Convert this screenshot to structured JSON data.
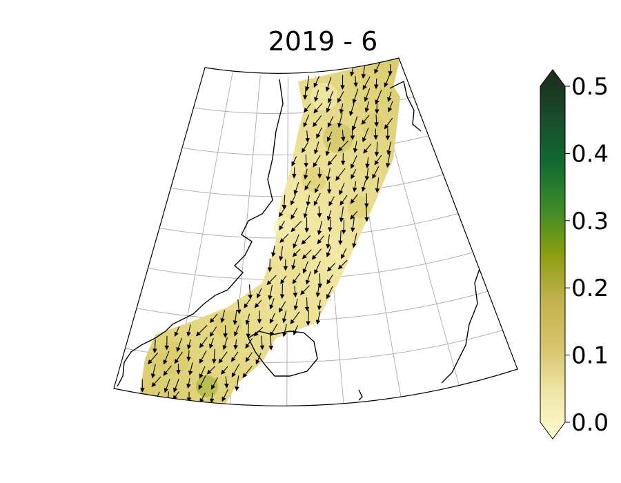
{
  "title": "2019 - 6",
  "colorbar": {
    "ticks": [
      {
        "value": 0.0,
        "label": "0.0"
      },
      {
        "value": 0.1,
        "label": "0.1"
      },
      {
        "value": 0.2,
        "label": "0.2"
      },
      {
        "value": 0.3,
        "label": "0.3"
      },
      {
        "value": 0.4,
        "label": "0.4"
      },
      {
        "value": 0.5,
        "label": "0.5"
      }
    ],
    "min": 0.0,
    "max": 0.5,
    "extend": "both",
    "colors": [
      "#fdfbd2",
      "#eee7a6",
      "#d6c36a",
      "#c2b24e",
      "#8a9e10",
      "#3c8a2a",
      "#0f6b30",
      "#1a4a2b",
      "#1c2a1b"
    ]
  },
  "map": {
    "field_colors": [
      "#f6efb4",
      "#e9dd8e",
      "#d8ca6a",
      "#c6bd55",
      "#9aae2a"
    ],
    "coastline_color": "#000000",
    "grid_color": "#b0b0b0",
    "arrow_color": "#000000"
  }
}
